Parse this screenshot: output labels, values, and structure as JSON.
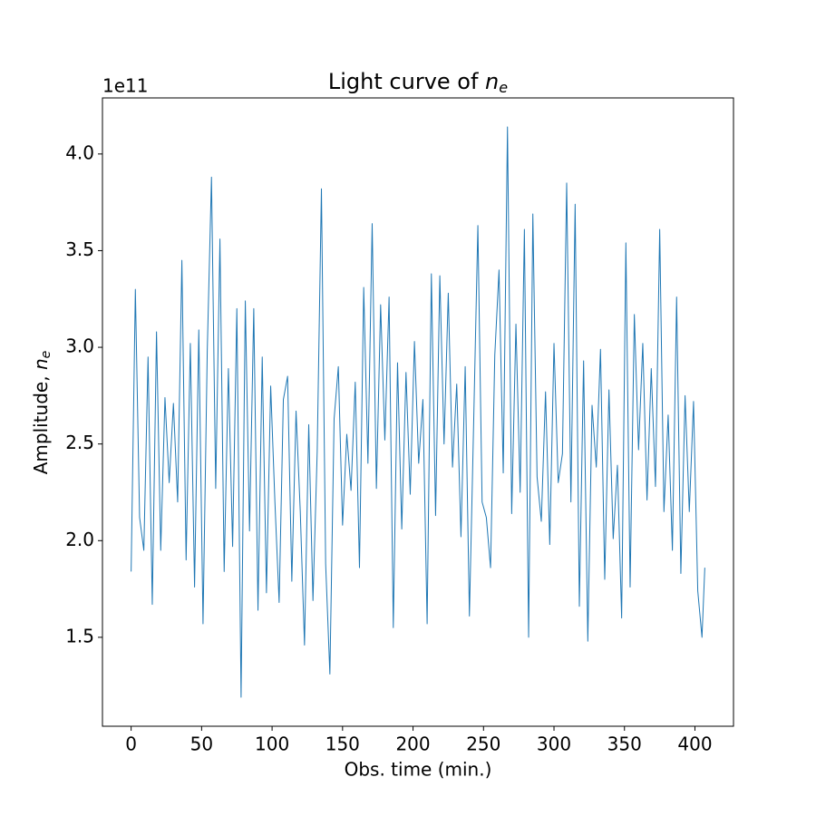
{
  "chart_data": {
    "type": "line",
    "title": {
      "text": "Light curve of ",
      "symbol": "n",
      "subscript": "e"
    },
    "xlabel": "Obs. time (min.)",
    "ylabel": {
      "text": "Amplitude, ",
      "symbol": "n",
      "subscript": "e"
    },
    "y_offset_label": "1e11",
    "xlim": [
      -20.35,
      427.35
    ],
    "ylim": [
      1.04,
      4.29
    ],
    "xticks": [
      0,
      50,
      100,
      150,
      200,
      250,
      300,
      350,
      400
    ],
    "yticks": [
      1.5,
      {
        "value": 2,
        "label": "2.0"
      },
      2.5,
      {
        "value": 3,
        "label": "3.0"
      },
      3.5,
      {
        "value": 4,
        "label": "4.0"
      }
    ],
    "grid": false,
    "x": [
      0,
      3,
      6,
      9,
      12,
      15,
      18,
      21,
      24,
      27,
      30,
      33,
      36,
      39,
      42,
      45,
      48,
      51,
      54,
      57,
      60,
      63,
      66,
      69,
      72,
      75,
      78,
      81,
      84,
      87,
      90,
      93,
      96,
      99,
      102,
      105,
      108,
      111,
      114,
      117,
      120,
      123,
      126,
      129,
      132,
      135,
      138,
      141,
      144,
      147,
      150,
      153,
      156,
      159,
      162,
      165,
      168,
      171,
      174,
      177,
      180,
      183,
      186,
      189,
      192,
      195,
      198,
      201,
      204,
      207,
      210,
      213,
      216,
      219,
      222,
      225,
      228,
      231,
      234,
      237,
      240,
      243,
      246,
      249,
      252,
      255,
      258,
      261,
      264,
      267,
      270,
      273,
      276,
      279,
      282,
      285,
      288,
      291,
      294,
      297,
      300,
      303,
      306,
      309,
      312,
      315,
      318,
      321,
      324,
      327,
      330,
      333,
      336,
      339,
      342,
      345,
      348,
      351,
      354,
      357,
      360,
      363,
      366,
      369,
      372,
      375,
      378,
      381,
      384,
      387,
      390,
      393,
      396,
      399,
      402,
      405,
      407
    ],
    "series": [
      {
        "color": "#1f77b4",
        "values": [
          1.84,
          3.3,
          2.12,
          1.95,
          2.95,
          1.67,
          3.08,
          1.95,
          2.74,
          2.3,
          2.71,
          2.2,
          3.45,
          1.9,
          3.02,
          1.76,
          3.09,
          1.57,
          2.98,
          3.88,
          2.27,
          3.56,
          1.84,
          2.89,
          1.97,
          3.2,
          1.19,
          3.24,
          2.05,
          3.2,
          1.64,
          2.95,
          1.73,
          2.8,
          2.2,
          1.68,
          2.73,
          2.85,
          1.79,
          2.67,
          2.15,
          1.46,
          2.6,
          1.69,
          2.46,
          3.82,
          1.88,
          1.31,
          2.63,
          2.9,
          2.08,
          2.55,
          2.26,
          2.82,
          1.86,
          3.31,
          2.4,
          3.64,
          2.27,
          3.22,
          2.52,
          3.26,
          1.55,
          2.92,
          2.06,
          2.87,
          2.24,
          3.03,
          2.4,
          2.73,
          1.57,
          3.38,
          2.13,
          3.37,
          2.5,
          3.28,
          2.38,
          2.81,
          2.02,
          2.9,
          1.61,
          2.61,
          3.63,
          2.2,
          2.12,
          1.86,
          2.96,
          3.4,
          2.35,
          4.14,
          2.14,
          3.12,
          2.25,
          3.61,
          1.5,
          3.69,
          2.33,
          2.1,
          2.77,
          1.98,
          3.02,
          2.3,
          2.45,
          3.85,
          2.2,
          3.74,
          1.66,
          2.93,
          1.48,
          2.7,
          2.38,
          2.99,
          1.8,
          2.78,
          2.01,
          2.39,
          1.6,
          3.54,
          1.76,
          3.17,
          2.47,
          3.02,
          2.21,
          2.89,
          2.28,
          3.61,
          2.15,
          2.65,
          1.95,
          3.26,
          1.83,
          2.75,
          2.15,
          2.72,
          1.74,
          1.5,
          1.86
        ]
      }
    ]
  }
}
